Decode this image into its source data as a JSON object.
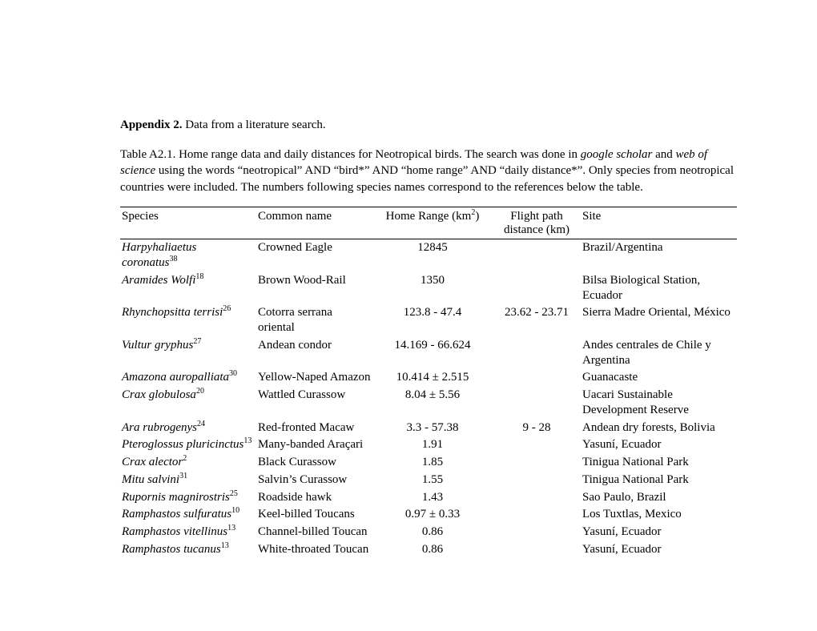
{
  "heading": {
    "label": "Appendix 2.",
    "text": " Data from a literature search."
  },
  "caption": {
    "pre": "Table A2.1. Home range data and daily distances for Neotropical birds. The search was done in ",
    "src1": "google scholar",
    "mid1": " and ",
    "src2": "web of science",
    "post": " using the words “neotropical” AND “bird*” AND “home range” AND “daily distance*”. Only species from neotropical countries were included. The numbers following species names correspond to the references below the table."
  },
  "headers": {
    "species": "Species",
    "common": "Common name",
    "range_pre": "Home Range (km",
    "range_sup": "2",
    "range_post": ")",
    "flight_l1": "Flight path",
    "flight_l2": "distance (km)",
    "site": "Site"
  },
  "rows": [
    {
      "species": "Harpyhaliaetus coronatus",
      "ref": "38",
      "common": "Crowned Eagle",
      "range": "12845",
      "flight": "",
      "site": "Brazil/Argentina"
    },
    {
      "species": "Aramides Wolfi",
      "ref": "18",
      "common": "Brown Wood-Rail",
      "range": "1350",
      "flight": "",
      "site": "Bilsa Biological Station, Ecuador"
    },
    {
      "species": "Rhynchopsitta terrisi",
      "ref": "26",
      "common": "Cotorra serrana oriental",
      "range": "123.8 - 47.4",
      "flight": "23.62 - 23.71",
      "site": "Sierra Madre Oriental, México"
    },
    {
      "species": "Vultur gryphus",
      "ref": "27",
      "common": "Andean condor",
      "range": "14.169 - 66.624",
      "flight": "",
      "site": "Andes centrales de Chile y Argentina"
    },
    {
      "species": "Amazona auropalliata",
      "ref": "30",
      "common": "Yellow-Naped Amazon",
      "range": "10.414 ± 2.515",
      "flight": "",
      "site": "Guanacaste"
    },
    {
      "species": "Crax globulosa",
      "ref": "20",
      "common": "Wattled Curassow",
      "range": "8.04 ± 5.56",
      "flight": "",
      "site": "Uacari Sustainable Development Reserve"
    },
    {
      "species": "Ara rubrogenys",
      "ref": "24",
      "common": "Red-fronted Macaw",
      "range": "3.3 - 57.38",
      "flight": "9 - 28",
      "site": "Andean dry forests, Bolivia"
    },
    {
      "species": "Pteroglossus pluricinctus",
      "ref": "13",
      "common": "Many-banded Araçari",
      "range": "1.91",
      "flight": "",
      "site": "Yasuní, Ecuador"
    },
    {
      "species": "Crax alector",
      "ref": "2",
      "common": "Black Curassow",
      "range": "1.85",
      "flight": "",
      "site": "Tinigua National Park"
    },
    {
      "species": "Mitu salvini",
      "ref": "31",
      "common": "Salvin’s Curassow",
      "range": "1.55",
      "flight": "",
      "site": "Tinigua National Park"
    },
    {
      "species": "Rupornis magnirostris",
      "ref": "25",
      "common": "Roadside hawk",
      "range": "1.43",
      "flight": "",
      "site": "Sao Paulo, Brazil"
    },
    {
      "species": "Ramphastos sulfuratus",
      "ref": "10",
      "common": "Keel-billed Toucans",
      "range": "0.97 ± 0.33",
      "flight": "",
      "site": "Los Tuxtlas, Mexico"
    },
    {
      "species": "Ramphastos vitellinus",
      "ref": "13",
      "common": "Channel-billed Toucan",
      "range": "0.86",
      "flight": "",
      "site": "Yasuní, Ecuador"
    },
    {
      "species": "Ramphastos tucanus",
      "ref": "13",
      "common": "White-throated Toucan",
      "range": "0.86",
      "flight": "",
      "site": "Yasuní, Ecuador"
    }
  ]
}
